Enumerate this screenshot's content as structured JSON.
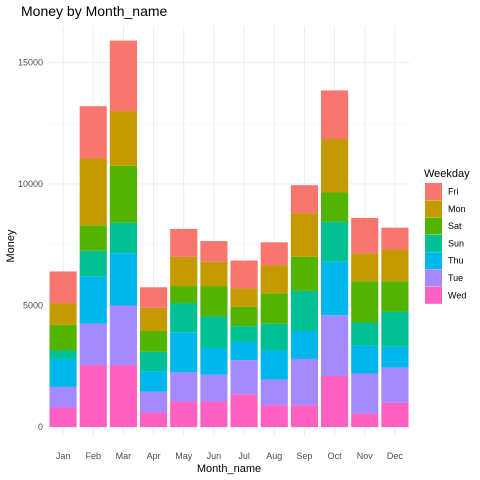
{
  "chart_data": {
    "type": "bar",
    "stacked": true,
    "title": "Money by Month_name",
    "xlabel": "Month_name",
    "ylabel": "Money",
    "ylim": [
      0,
      16500
    ],
    "yticks": [
      0,
      5000,
      10000,
      15000
    ],
    "ytick_labels": [
      "0",
      "5000",
      "10000",
      "15000"
    ],
    "grid": true,
    "legend_title": "Weekday",
    "legend_position": "right",
    "categories": [
      "Jan",
      "Feb",
      "Mar",
      "Apr",
      "May",
      "Jun",
      "Jul",
      "Aug",
      "Sep",
      "Oct",
      "Nov",
      "Dec"
    ],
    "series": [
      {
        "name": "Wed",
        "color": "#FF61C3",
        "values": [
          800,
          2550,
          2550,
          600,
          1050,
          1050,
          1350,
          900,
          900,
          2100,
          550,
          1000
        ]
      },
      {
        "name": "Tue",
        "color": "#A58AFF",
        "values": [
          850,
          1700,
          2450,
          850,
          1200,
          1100,
          1400,
          1050,
          1900,
          2500,
          1650,
          1450
        ]
      },
      {
        "name": "Thu",
        "color": "#00B6EB",
        "values": [
          1150,
          1950,
          2150,
          850,
          1650,
          1100,
          750,
          1200,
          1150,
          2200,
          1150,
          850
        ]
      },
      {
        "name": "Sun",
        "color": "#00C094",
        "values": [
          350,
          1050,
          1250,
          800,
          1200,
          1300,
          650,
          1100,
          1650,
          1650,
          950,
          1450
        ]
      },
      {
        "name": "Sat",
        "color": "#53B400",
        "values": [
          1050,
          1050,
          2350,
          850,
          700,
          1250,
          800,
          1250,
          1400,
          1200,
          1700,
          1250
        ]
      },
      {
        "name": "Mon",
        "color": "#C49A00",
        "values": [
          900,
          2750,
          2250,
          950,
          1200,
          1000,
          750,
          1150,
          1800,
          2200,
          1150,
          1300
        ]
      },
      {
        "name": "Fri",
        "color": "#F8766D",
        "values": [
          1300,
          2150,
          2900,
          850,
          1150,
          850,
          1150,
          950,
          1150,
          2000,
          1450,
          900
        ]
      }
    ],
    "legend_order": [
      "Fri",
      "Mon",
      "Sat",
      "Sun",
      "Thu",
      "Tue",
      "Wed"
    ]
  }
}
